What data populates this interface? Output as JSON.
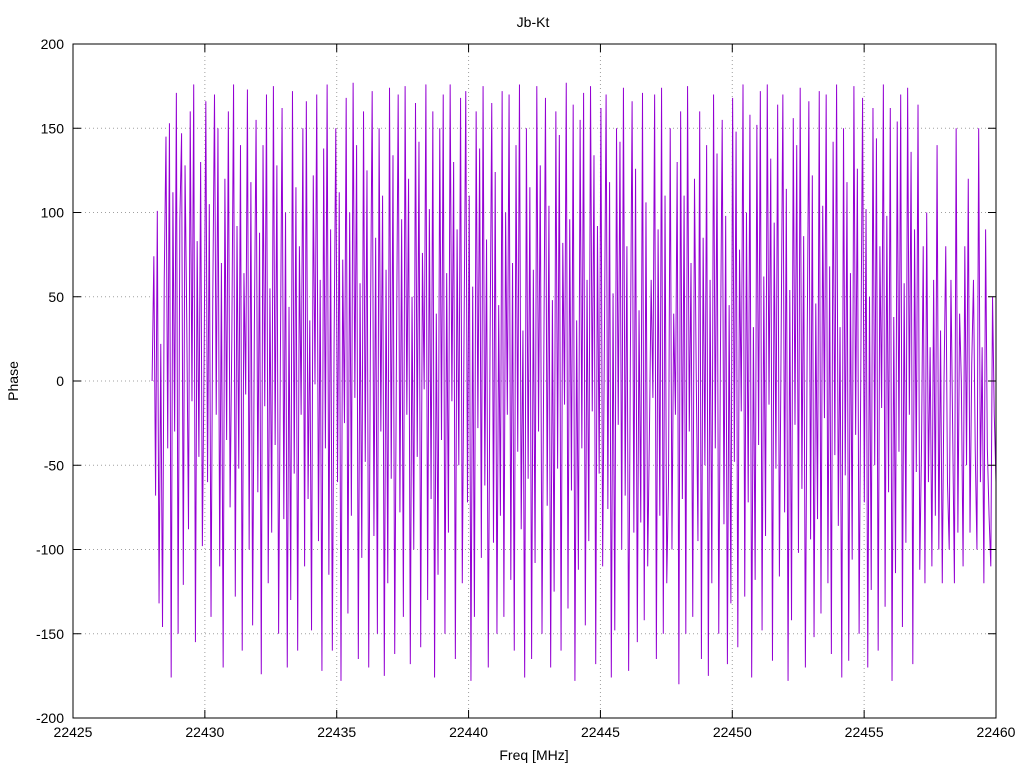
{
  "chart_data": {
    "type": "line",
    "title": "Jb-Kt",
    "xlabel": "Freq [MHz]",
    "ylabel": "Phase",
    "xlim": [
      22425,
      22460
    ],
    "ylim": [
      -200,
      200
    ],
    "xticks": [
      22425,
      22430,
      22435,
      22440,
      22445,
      22450,
      22455,
      22460
    ],
    "yticks": [
      -200,
      -150,
      -100,
      -50,
      0,
      50,
      100,
      150,
      200
    ],
    "grid": true,
    "line_color": "#9400d3",
    "x_start": 22428.0,
    "x_end": 22460.0,
    "series": [
      {
        "values": [
          0,
          74,
          -68,
          101,
          -132,
          22,
          -146,
          60,
          145,
          -40,
          153,
          -176,
          112,
          -30,
          171,
          -150,
          95,
          147,
          -121,
          128,
          35,
          -88,
          160,
          -12,
          176,
          -155,
          83,
          -45,
          130,
          -98,
          12,
          166,
          -60,
          105,
          -140,
          48,
          170,
          -20,
          150,
          -110,
          70,
          -170,
          120,
          -35,
          160,
          -75,
          25,
          176,
          -128,
          92,
          -52,
          140,
          -160,
          64,
          -8,
          173,
          -100,
          118,
          -145,
          30,
          155,
          -66,
          88,
          -174,
          140,
          -15,
          170,
          -120,
          55,
          -90,
          175,
          -38,
          128,
          -150,
          10,
          162,
          -82,
          100,
          -170,
          44,
          -130,
          172,
          -55,
          115,
          -160,
          80,
          -20,
          150,
          -110,
          166,
          -70,
          36,
          -148,
          122,
          -2,
          170,
          -95,
          60,
          -172,
          138,
          -40,
          176,
          -115,
          90,
          -160,
          20,
          150,
          -60,
          112,
          -178,
          72,
          -25,
          168,
          -138,
          100,
          -80,
          177,
          -10,
          140,
          -165,
          58,
          -105,
          160,
          -48,
          125,
          -170,
          30,
          172,
          -92,
          85,
          -150,
          150,
          -30,
          110,
          -175,
          66,
          -120,
          174,
          -58,
          134,
          -162,
          15,
          170,
          -78,
          96,
          -140,
          175,
          -20,
          120,
          -168,
          50,
          -100,
          165,
          -45,
          142,
          -158,
          76,
          -5,
          176,
          -130,
          102,
          -70,
          160,
          -176,
          40,
          -115,
          150,
          -35,
          170,
          -150,
          64,
          -90,
          176,
          -12,
          130,
          -165,
          90,
          -50,
          168,
          -120,
          26,
          172,
          -72,
          110,
          -178,
          56,
          -140,
          160,
          -28,
          138,
          -105,
          175,
          -62,
          84,
          -170,
          18,
          165,
          -96,
          124,
          -150,
          45,
          -80,
          172,
          -140,
          100,
          -20,
          170,
          -118,
          70,
          -160,
          140,
          -42,
          176,
          -88,
          30,
          -176,
          150,
          -58,
          115,
          -165,
          66,
          -108,
          175,
          -30,
          128,
          -150,
          8,
          168,
          -74,
          104,
          -170,
          48,
          -125,
          160,
          -52,
          146,
          -160,
          82,
          -14,
          177,
          -135,
          96,
          -65,
          164,
          -178,
          36,
          -112,
          155,
          -40,
          171,
          -145,
          60,
          -95,
          175,
          -18,
          134,
          -168,
          92,
          -55,
          162,
          -110,
          22,
          170,
          -76,
          118,
          -176,
          52,
          -148,
          150,
          -26,
          142,
          -100,
          174,
          -68,
          80,
          -172,
          14,
          166,
          -90,
          126,
          -155,
          42,
          -84,
          171,
          -142,
          106,
          -110,
          -30,
          60,
          -10,
          170,
          -165,
          90,
          -80,
          174,
          -150,
          110,
          -120,
          -60,
          150,
          -100,
          40,
          -20,
          130,
          -180,
          160,
          -70,
          110,
          -150,
          175,
          -30,
          70,
          -140,
          120,
          5,
          -95,
          160,
          -165,
          85,
          -50,
          140,
          -175,
          60,
          -120,
          170,
          -40,
          135,
          -150,
          20,
          155,
          -85,
          98,
          -168,
          45,
          -132,
          168,
          -48,
          148,
          -158,
          78,
          -18,
          176,
          -128,
          100,
          -72,
          158,
          -176,
          32,
          -118,
          152,
          -38,
          172,
          -148,
          62,
          -92,
          176,
          -14,
          132,
          -166,
          94,
          -52,
          164,
          -116,
          24,
          170,
          -78,
          114,
          -178,
          54,
          -142,
          156,
          -26,
          140,
          -102,
          174,
          -64,
          86,
          -170,
          16,
          166,
          -94,
          122,
          -152,
          46,
          -82,
          172,
          -138,
          104,
          -22,
          170,
          -120,
          68,
          -162,
          142,
          -44,
          176,
          -86,
          32,
          -176,
          150,
          -56,
          118,
          -166,
          64,
          -106,
          175,
          -32,
          126,
          -150,
          10,
          168,
          -72,
          102,
          -170,
          50,
          -124,
          162,
          -50,
          144,
          -160,
          80,
          -16,
          176,
          -134,
          98,
          -66,
          162,
          -178,
          38,
          -114,
          154,
          -42,
          170,
          -146,
          58,
          -96,
          174,
          -20,
          136,
          -168,
          90,
          -54,
          164,
          -112,
          -40,
          80,
          -120,
          100,
          -60,
          20,
          -110,
          60,
          -80,
          140,
          -100,
          30,
          -120,
          0,
          80,
          -60,
          -100,
          60,
          -30,
          -120,
          150,
          -90,
          40,
          0,
          -110,
          80,
          -50,
          120,
          -90,
          10,
          60,
          -40,
          -100,
          150,
          -60,
          20,
          -120,
          90,
          -40,
          -80,
          -110,
          50,
          -20,
          -60
        ]
      }
    ]
  }
}
